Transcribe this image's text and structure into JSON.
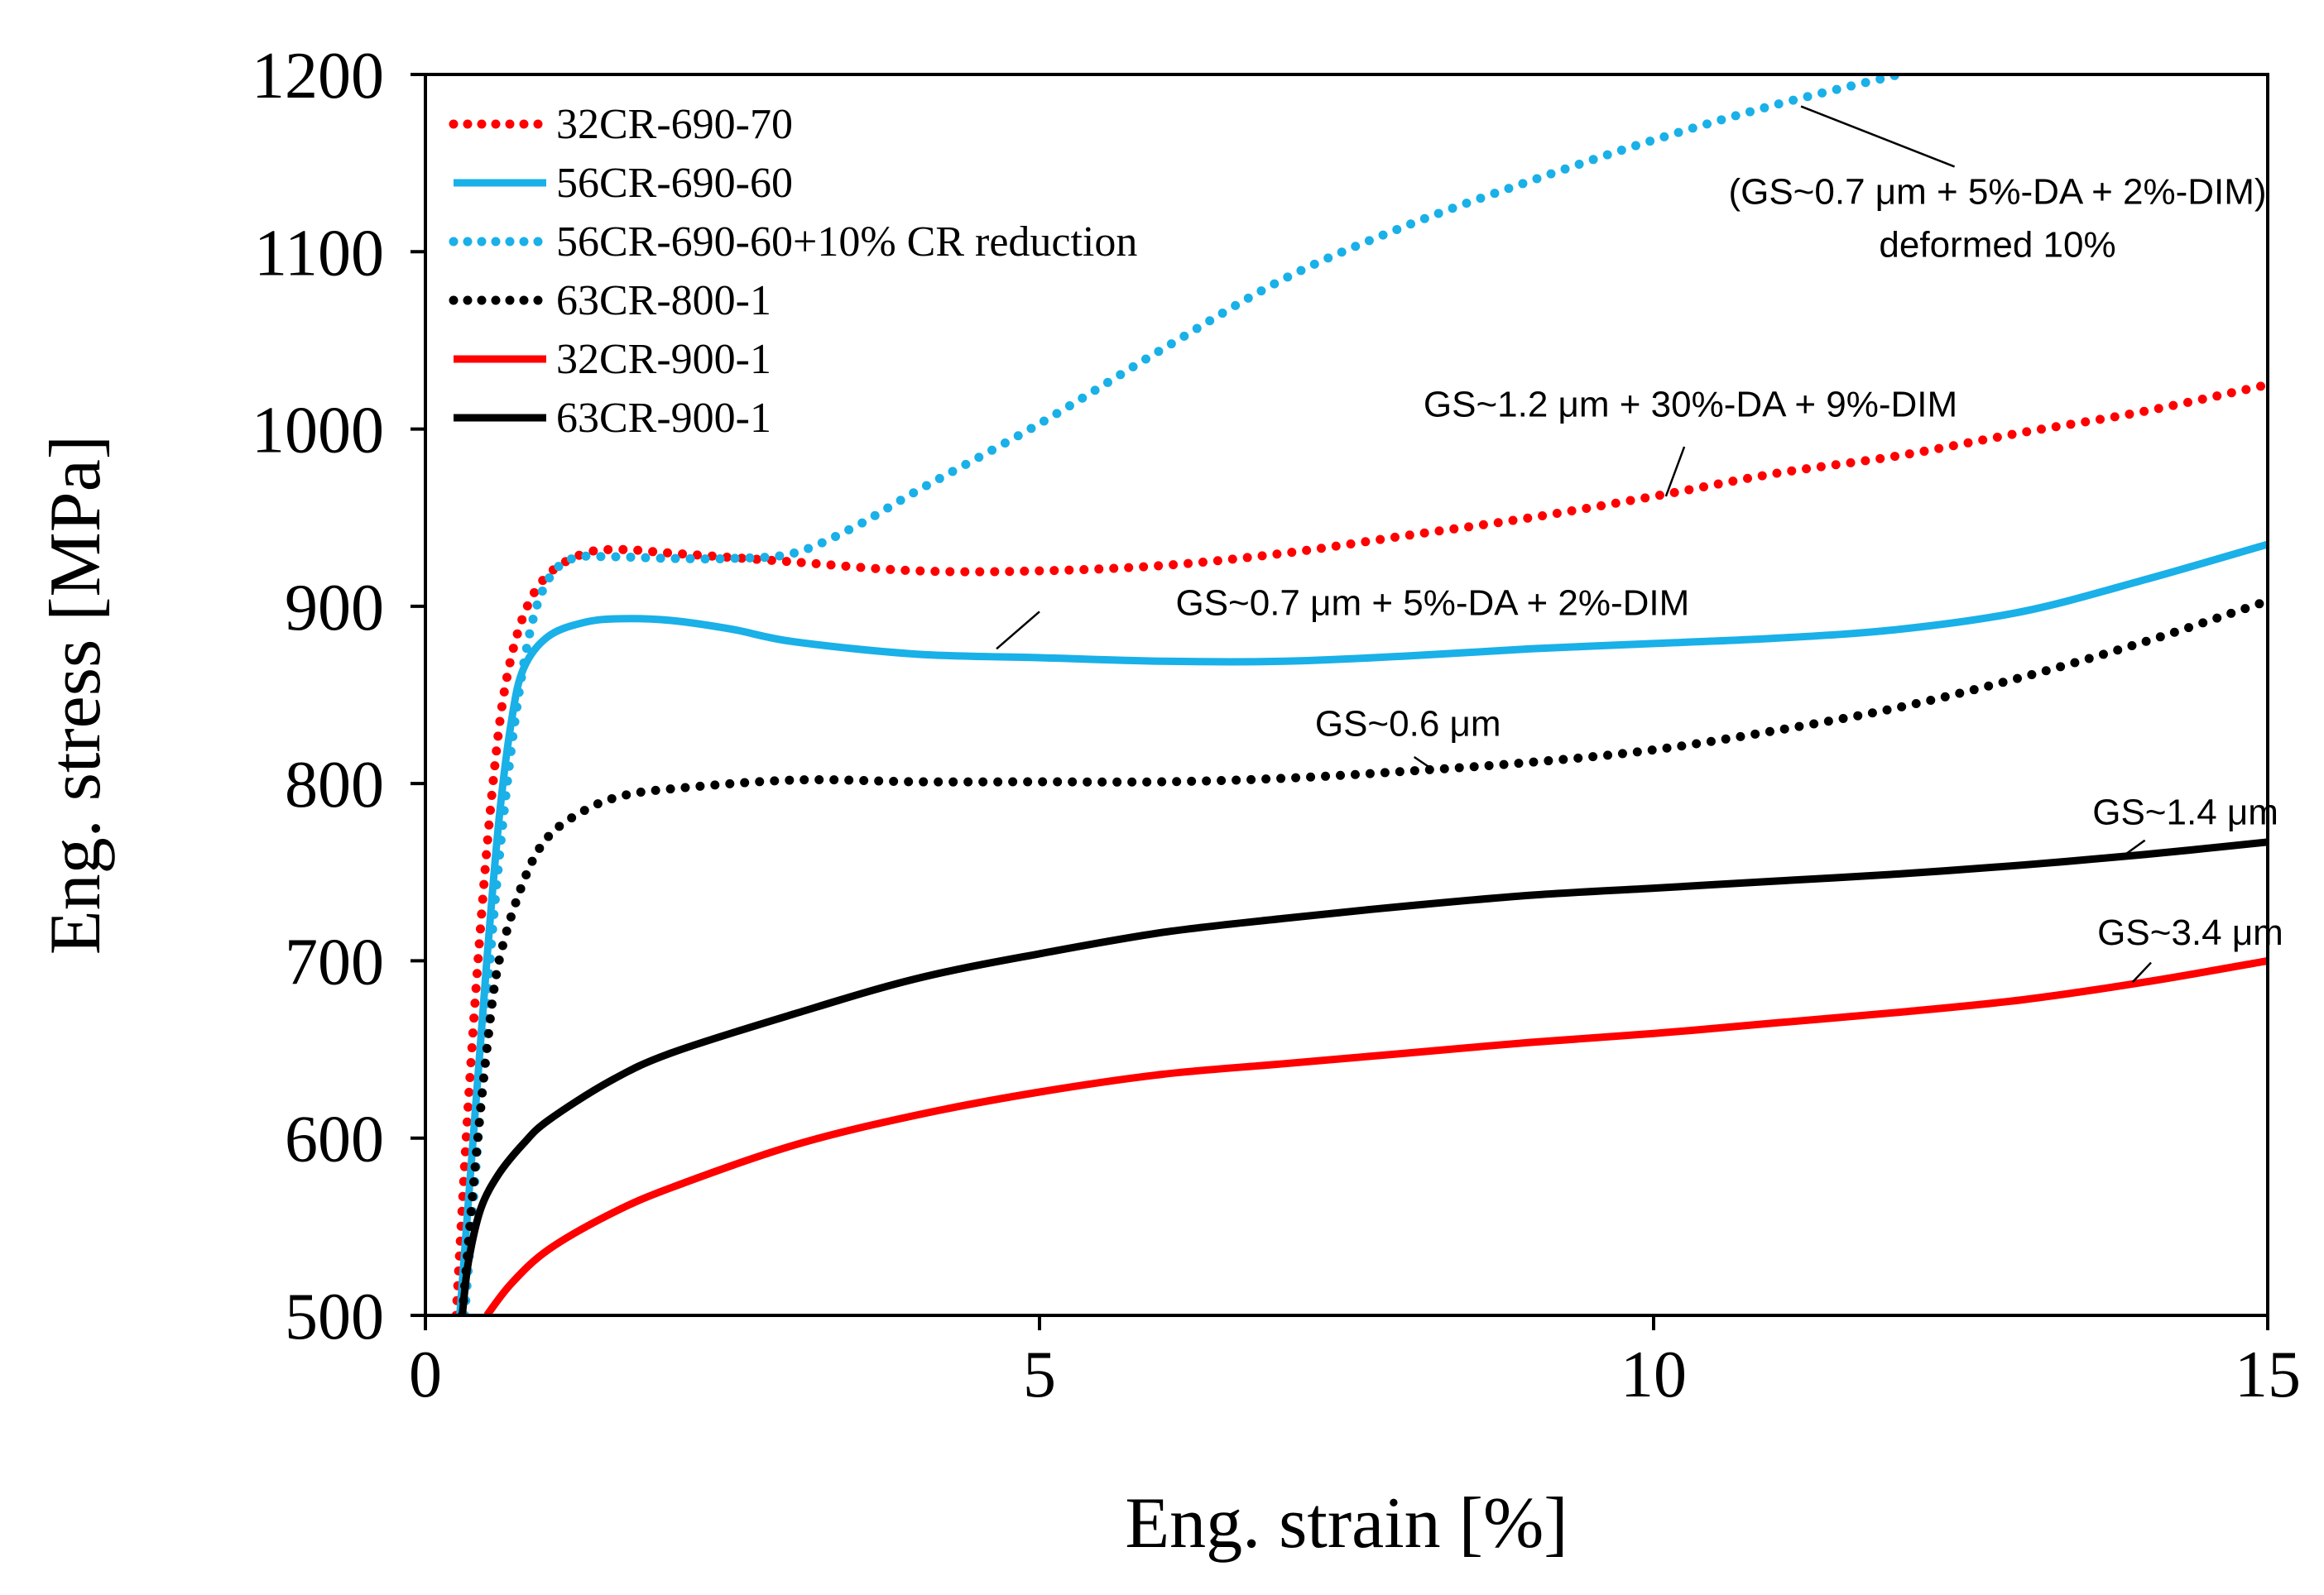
{
  "chart_data": {
    "type": "line",
    "title": "",
    "xlabel": "Eng. strain [%]",
    "ylabel": "Eng. stress [MPa]",
    "xlim": [
      0,
      15
    ],
    "ylim": [
      500,
      1200
    ],
    "xticks": [
      0,
      5,
      10,
      15
    ],
    "yticks": [
      500,
      600,
      700,
      800,
      900,
      1000,
      1100,
      1200
    ],
    "grid": false,
    "legend_position": "top-left",
    "series": [
      {
        "name": "32CR-690-70",
        "color": "#ff0000",
        "style": "dotted",
        "points": [
          [
            0.25,
            500
          ],
          [
            0.35,
            620
          ],
          [
            0.45,
            720
          ],
          [
            0.55,
            800
          ],
          [
            0.65,
            855
          ],
          [
            0.8,
            895
          ],
          [
            1.0,
            918
          ],
          [
            1.3,
            930
          ],
          [
            1.6,
            932
          ],
          [
            2.0,
            930
          ],
          [
            3.0,
            925
          ],
          [
            4.0,
            920
          ],
          [
            5.0,
            920
          ],
          [
            6.0,
            923
          ],
          [
            7.0,
            930
          ],
          [
            8.0,
            940
          ],
          [
            9.0,
            950
          ],
          [
            10.0,
            962
          ],
          [
            11.0,
            975
          ],
          [
            12.0,
            985
          ],
          [
            13.0,
            998
          ],
          [
            14.0,
            1010
          ],
          [
            15.0,
            1025
          ]
        ]
      },
      {
        "name": "56CR-690-60",
        "color": "#1ab0e8",
        "style": "solid",
        "points": [
          [
            0.28,
            500
          ],
          [
            0.4,
            610
          ],
          [
            0.5,
            700
          ],
          [
            0.6,
            780
          ],
          [
            0.7,
            835
          ],
          [
            0.8,
            865
          ],
          [
            1.0,
            883
          ],
          [
            1.3,
            891
          ],
          [
            1.6,
            893
          ],
          [
            2.0,
            892
          ],
          [
            2.5,
            887
          ],
          [
            3.0,
            880
          ],
          [
            4.0,
            873
          ],
          [
            5.0,
            871
          ],
          [
            6.0,
            869
          ],
          [
            7.0,
            869
          ],
          [
            8.0,
            872
          ],
          [
            9.0,
            876
          ],
          [
            10.0,
            879
          ],
          [
            11.0,
            882
          ],
          [
            12.0,
            887
          ],
          [
            13.0,
            897
          ],
          [
            14.0,
            915
          ],
          [
            15.0,
            935
          ]
        ]
      },
      {
        "name": "56CR-690-60+10% CR reduction",
        "color": "#1ab0e8",
        "style": "dotted",
        "points": [
          [
            0.32,
            500
          ],
          [
            0.45,
            620
          ],
          [
            0.55,
            720
          ],
          [
            0.7,
            820
          ],
          [
            0.85,
            885
          ],
          [
            1.0,
            915
          ],
          [
            1.2,
            927
          ],
          [
            1.5,
            928
          ],
          [
            2.0,
            927
          ],
          [
            2.5,
            927
          ],
          [
            3.0,
            930
          ],
          [
            3.5,
            945
          ],
          [
            4.0,
            965
          ],
          [
            5.0,
            1003
          ],
          [
            6.0,
            1045
          ],
          [
            7.0,
            1085
          ],
          [
            8.0,
            1115
          ],
          [
            9.0,
            1140
          ],
          [
            10.0,
            1163
          ],
          [
            11.0,
            1183
          ],
          [
            12.0,
            1200
          ]
        ]
      },
      {
        "name": "63CR-800-1",
        "color": "#000000",
        "style": "dotted",
        "points": [
          [
            0.3,
            500
          ],
          [
            0.4,
            580
          ],
          [
            0.5,
            650
          ],
          [
            0.6,
            700
          ],
          [
            0.8,
            745
          ],
          [
            1.0,
            770
          ],
          [
            1.3,
            785
          ],
          [
            1.6,
            793
          ],
          [
            2.0,
            797
          ],
          [
            3.0,
            802
          ],
          [
            4.0,
            801
          ],
          [
            5.0,
            801
          ],
          [
            6.0,
            801
          ],
          [
            7.0,
            803
          ],
          [
            8.0,
            807
          ],
          [
            9.0,
            812
          ],
          [
            10.0,
            819
          ],
          [
            11.0,
            830
          ],
          [
            12.0,
            843
          ],
          [
            13.0,
            860
          ],
          [
            14.0,
            880
          ],
          [
            15.0,
            903
          ]
        ]
      },
      {
        "name": "32CR-900-1",
        "color": "#ff0000",
        "style": "solid",
        "points": [
          [
            0.5,
            500
          ],
          [
            0.7,
            518
          ],
          [
            1.0,
            537
          ],
          [
            1.5,
            557
          ],
          [
            2.0,
            572
          ],
          [
            3.0,
            596
          ],
          [
            4.0,
            613
          ],
          [
            5.0,
            626
          ],
          [
            6.0,
            636
          ],
          [
            7.0,
            642
          ],
          [
            8.0,
            648
          ],
          [
            9.0,
            654
          ],
          [
            10.0,
            659
          ],
          [
            11.0,
            665
          ],
          [
            12.0,
            671
          ],
          [
            13.0,
            678
          ],
          [
            14.0,
            688
          ],
          [
            15.0,
            700
          ]
        ]
      },
      {
        "name": "63CR-900-1",
        "color": "#000000",
        "style": "solid",
        "points": [
          [
            0.3,
            500
          ],
          [
            0.35,
            530
          ],
          [
            0.45,
            560
          ],
          [
            0.6,
            580
          ],
          [
            0.8,
            597
          ],
          [
            1.0,
            610
          ],
          [
            1.5,
            632
          ],
          [
            2.0,
            648
          ],
          [
            3.0,
            670
          ],
          [
            4.0,
            690
          ],
          [
            5.0,
            704
          ],
          [
            6.0,
            716
          ],
          [
            7.0,
            724
          ],
          [
            8.0,
            731
          ],
          [
            9.0,
            737
          ],
          [
            10.0,
            741
          ],
          [
            11.0,
            745
          ],
          [
            12.0,
            749
          ],
          [
            13.0,
            754
          ],
          [
            14.0,
            760
          ],
          [
            15.0,
            767
          ]
        ]
      }
    ],
    "annotations": [
      {
        "lines": [
          "(GS~0.7 μm + 5%-DA + 2%-DIM)",
          "deformed 10%"
        ],
        "text_anchor": [
          12.8,
          1127
        ],
        "leader_from": [
          12.45,
          1148
        ],
        "leader_to": [
          11.2,
          1182
        ]
      },
      {
        "lines": [
          "GS~1.2 μm + 30%-DA + 9%-DIM"
        ],
        "text_anchor": [
          10.3,
          1007
        ],
        "leader_from": [
          10.25,
          990
        ],
        "leader_to": [
          10.1,
          962
        ]
      },
      {
        "lines": [
          "GS~0.7 μm + 5%-DA + 2%-DIM"
        ],
        "text_anchor": [
          8.2,
          895
        ],
        "leader_from": [
          5.0,
          897
        ],
        "leader_to": [
          4.65,
          876
        ]
      },
      {
        "lines": [
          "GS~0.6 μm"
        ],
        "text_anchor": [
          8.0,
          827
        ],
        "leader_from": [
          8.05,
          815
        ],
        "leader_to": [
          8.2,
          808
        ]
      },
      {
        "lines": [
          "GS~1.4 μm"
        ],
        "text_anchor": [
          14.33,
          777
        ],
        "leader_from": [
          14.0,
          768
        ],
        "leader_to": [
          13.8,
          758
        ]
      },
      {
        "lines": [
          "GS~3.4 μm"
        ],
        "text_anchor": [
          14.37,
          709
        ],
        "leader_from": [
          14.05,
          699
        ],
        "leader_to": [
          13.9,
          688
        ]
      }
    ]
  }
}
